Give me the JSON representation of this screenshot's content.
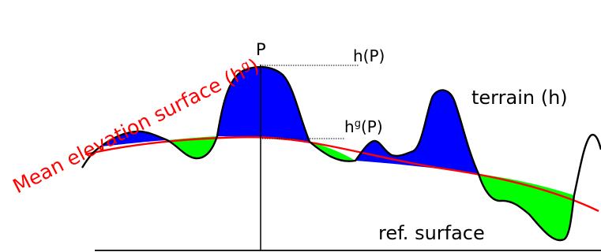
{
  "labels": {
    "mean_surface": "Mean elevation  surface (h",
    "mean_surface_sup": "g",
    "mean_surface_close": ")",
    "point": "P",
    "h_at_p": "h(P)",
    "hg_at_p_h": "h",
    "hg_at_p_sup": "g",
    "hg_at_p_rest": "(P)",
    "terrain": "terrain (h)",
    "reference": "ref. surface"
  },
  "colors": {
    "terrain_line": "#000000",
    "mean_surface_line": "#ff0000",
    "above_fill": "#0000ff",
    "below_fill": "#00ff00",
    "mean_label": "#ff0000",
    "text": "#000000"
  }
}
